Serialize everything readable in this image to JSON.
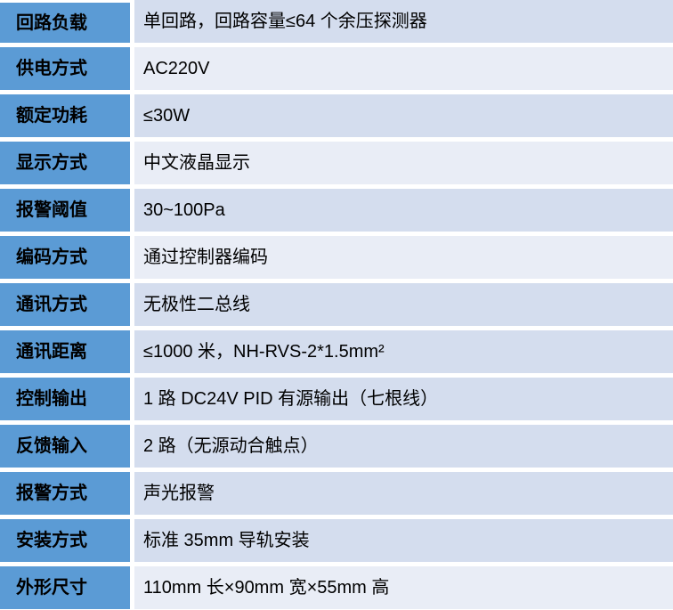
{
  "page": {
    "type": "specification-table",
    "colors": {
      "label-bg": "#5B9BD5",
      "band-dark": "#D4DDEE",
      "band-light": "#E9EDF6",
      "gap": "#FFFFFF",
      "text": "#000000"
    },
    "rows": [
      {
        "label": "回路负载",
        "value": "单回路，回路容量≤64 个余压探测器",
        "band": "dark"
      },
      {
        "label": "供电方式",
        "value": "AC220V",
        "band": "light"
      },
      {
        "label": "额定功耗",
        "value": "≤30W",
        "band": "dark"
      },
      {
        "label": "显示方式",
        "value": "中文液晶显示",
        "band": "light"
      },
      {
        "label": "报警阈值",
        "value": "30~100Pa",
        "band": "dark"
      },
      {
        "label": "编码方式",
        "value": "通过控制器编码",
        "band": "light"
      },
      {
        "label": "通讯方式",
        "value": "无极性二总线",
        "band": "dark"
      },
      {
        "label": "通讯距离",
        "value": "≤1000 米，NH-RVS-2*1.5mm²",
        "band": "dark"
      },
      {
        "label": "控制输出",
        "value": "1 路 DC24V PID 有源输出（七根线）",
        "band": "dark"
      },
      {
        "label": "反馈输入",
        "value": "2 路（无源动合触点）",
        "band": "dark"
      },
      {
        "label": "报警方式",
        "value": "声光报警",
        "band": "dark"
      },
      {
        "label": "安装方式",
        "value": "标准 35mm 导轨安装",
        "band": "dark"
      },
      {
        "label": "外形尺寸",
        "value": "110mm 长×90mm 宽×55mm 高",
        "band": "light"
      }
    ]
  }
}
